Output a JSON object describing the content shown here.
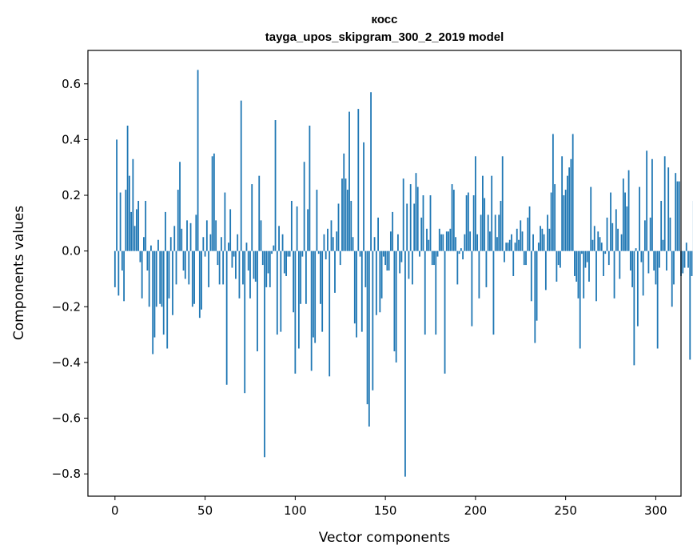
{
  "chart_data": {
    "type": "bar",
    "title": "косс",
    "subtitle": "tayga_upos_skipgram_300_2_2019 model",
    "xlabel": "Vector components",
    "ylabel": "Components values",
    "xlim": [
      -15,
      314
    ],
    "ylim": [
      -0.88,
      0.72
    ],
    "xticks": [
      0,
      50,
      100,
      150,
      200,
      250,
      300
    ],
    "xtick_labels": [
      "0",
      "50",
      "100",
      "150",
      "200",
      "250",
      "300"
    ],
    "yticks": [
      -0.8,
      -0.6,
      -0.4,
      -0.2,
      0.0,
      0.2,
      0.4,
      0.6
    ],
    "ytick_labels": [
      "−0.8",
      "−0.6",
      "−0.4",
      "−0.2",
      "0.0",
      "0.2",
      "0.4",
      "0.6"
    ],
    "bar_color": "#1f77b4",
    "grid": false,
    "values": [
      -0.13,
      0.4,
      -0.16,
      0.21,
      -0.07,
      -0.18,
      0.22,
      0.45,
      0.27,
      0.14,
      0.33,
      0.09,
      0.15,
      0.18,
      -0.04,
      -0.17,
      0.05,
      0.18,
      -0.07,
      -0.2,
      0.02,
      -0.37,
      -0.31,
      -0.2,
      0.04,
      -0.19,
      -0.2,
      -0.3,
      0.14,
      -0.35,
      -0.17,
      0.05,
      -0.23,
      0.09,
      -0.12,
      0.22,
      0.32,
      0.08,
      -0.07,
      -0.1,
      0.11,
      -0.12,
      0.1,
      -0.2,
      -0.19,
      0.13,
      0.65,
      -0.24,
      -0.21,
      0.05,
      -0.02,
      0.11,
      -0.13,
      0.06,
      0.34,
      0.35,
      0.11,
      -0.05,
      -0.12,
      0.05,
      -0.12,
      0.21,
      -0.48,
      0.03,
      0.15,
      -0.06,
      -0.02,
      -0.1,
      0.06,
      -0.17,
      0.54,
      -0.12,
      -0.51,
      0.03,
      -0.07,
      -0.17,
      0.24,
      -0.1,
      -0.11,
      -0.36,
      0.27,
      0.11,
      -0.05,
      -0.74,
      -0.13,
      -0.08,
      -0.13,
      -0.01,
      0.02,
      0.47,
      -0.3,
      0.09,
      -0.29,
      0.06,
      -0.08,
      -0.09,
      -0.02,
      -0.02,
      0.18,
      -0.22,
      -0.44,
      0.16,
      -0.35,
      -0.19,
      -0.02,
      0.32,
      -0.19,
      0.15,
      0.45,
      -0.43,
      -0.31,
      -0.33,
      0.22,
      -0.01,
      -0.19,
      -0.29,
      0.06,
      -0.03,
      0.08,
      -0.45,
      0.11,
      0.05,
      -0.15,
      0.07,
      0.17,
      -0.05,
      0.26,
      0.35,
      0.26,
      0.22,
      0.5,
      0.18,
      0.05,
      -0.26,
      -0.31,
      0.51,
      -0.02,
      -0.29,
      0.39,
      -0.13,
      -0.55,
      -0.63,
      0.57,
      -0.5,
      0.05,
      -0.23,
      0.12,
      -0.22,
      -0.17,
      -0.02,
      -0.05,
      -0.07,
      -0.07,
      0.07,
      0.14,
      -0.36,
      -0.4,
      0.06,
      -0.08,
      -0.04,
      0.26,
      -0.81,
      0.17,
      -0.1,
      0.24,
      -0.12,
      0.17,
      0.28,
      0.23,
      -0.02,
      0.12,
      0.2,
      -0.3,
      0.08,
      0.04,
      0.2,
      -0.05,
      -0.05,
      -0.3,
      -0.02,
      0.08,
      0.06,
      0.06,
      -0.44,
      0.07,
      0.07,
      0.08,
      0.24,
      0.22,
      0.05,
      -0.12,
      -0.01,
      0.01,
      -0.03,
      0.06,
      0.2,
      0.21,
      0.07,
      -0.27,
      0.2,
      0.34,
      0.06,
      -0.17,
      0.13,
      0.27,
      0.19,
      -0.13,
      0.13,
      0.07,
      0.27,
      -0.3,
      0.13,
      0.05,
      0.13,
      0.18,
      0.34,
      -0.04,
      0.03,
      0.03,
      0.04,
      0.06,
      -0.09,
      0.03,
      0.08,
      0.04,
      0.11,
      0.07,
      -0.05,
      -0.05,
      0.12,
      0.16,
      -0.18,
      0.06,
      -0.33,
      -0.25,
      0.03,
      0.09,
      0.08,
      0.06,
      -0.14,
      0.13,
      0.08,
      0.21,
      0.42,
      0.24,
      -0.11,
      -0.05,
      -0.06,
      0.34,
      0.2,
      0.22,
      0.27,
      0.3,
      0.33,
      0.42,
      -0.09,
      -0.11,
      -0.17,
      -0.35,
      -0.01,
      -0.17,
      -0.06,
      -0.04,
      -0.11,
      0.23,
      0.04,
      0.09,
      -0.18,
      0.07,
      0.05,
      0.03,
      -0.09,
      -0.01,
      0.12,
      -0.05,
      0.21,
      0.1,
      -0.17,
      0.15,
      0.08,
      -0.1,
      0.06,
      0.26,
      0.21,
      0.16,
      0.29,
      -0.07,
      -0.13,
      -0.41,
      0.01,
      -0.27,
      0.23,
      -0.04,
      -0.16,
      0.11,
      0.36,
      -0.08,
      0.12,
      0.33,
      -0.07,
      -0.12,
      -0.35,
      -0.06,
      0.18,
      0.04,
      0.34,
      -0.07,
      0.3,
      0.12,
      -0.2,
      -0.12,
      0.28,
      0.25,
      0.25,
      -0.09,
      -0.08,
      -0.06,
      0.03,
      -0.06,
      -0.39,
      -0.09,
      0.18
    ]
  }
}
